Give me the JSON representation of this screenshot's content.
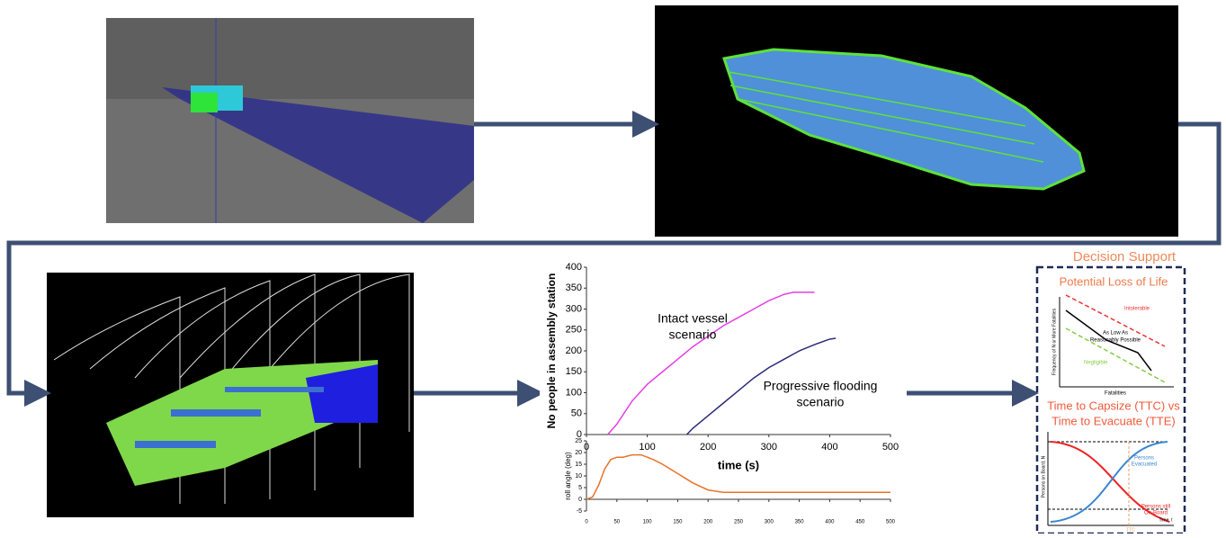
{
  "assembly_chart": {
    "type": "line",
    "ylabel": "No people in assembly station",
    "xlabel": "time (s)",
    "xlim": [
      0,
      500
    ],
    "ylim": [
      0,
      400
    ],
    "xticks": [
      0,
      100,
      200,
      300,
      400,
      500
    ],
    "yticks": [
      0,
      50,
      100,
      150,
      200,
      250,
      300,
      350,
      400
    ],
    "series": [
      {
        "color": "#e43fe4",
        "x": [
          35,
          50,
          75,
          100,
          125,
          150,
          175,
          200,
          225,
          250,
          275,
          300,
          325,
          340,
          375
        ],
        "values": [
          0,
          25,
          80,
          120,
          150,
          180,
          210,
          235,
          260,
          280,
          300,
          320,
          335,
          340,
          340
        ]
      },
      {
        "color": "#2b2b78",
        "x": [
          165,
          175,
          200,
          225,
          250,
          275,
          300,
          325,
          350,
          375,
          400,
          410
        ],
        "values": [
          0,
          15,
          45,
          75,
          105,
          135,
          160,
          180,
          200,
          215,
          228,
          230
        ]
      }
    ],
    "annotations": [
      {
        "lines": [
          "Intact vessel",
          "scenario"
        ]
      },
      {
        "lines": [
          "Progressive flooding",
          "scenario"
        ]
      }
    ]
  },
  "roll_chart": {
    "type": "line",
    "ylabel": "roll angle (deg)",
    "xlim": [
      0,
      500
    ],
    "ylim": [
      -5,
      25
    ],
    "xticks": [
      0,
      50,
      100,
      150,
      200,
      250,
      300,
      350,
      400,
      450,
      500
    ],
    "yticks": [
      -5,
      0,
      5,
      10,
      15,
      20,
      25
    ],
    "series": [
      {
        "color": "#e8732a",
        "x": [
          0,
          10,
          20,
          30,
          40,
          50,
          60,
          75,
          90,
          100,
          110,
          125,
          150,
          175,
          200,
          225,
          250,
          300,
          350,
          400,
          450,
          500
        ],
        "values": [
          0,
          1,
          6,
          13,
          17,
          18,
          18,
          19,
          19,
          18,
          17,
          15,
          11,
          7,
          4,
          3,
          3,
          3,
          3,
          3,
          3,
          3
        ]
      }
    ]
  },
  "decision_support": {
    "title": "Decision Support",
    "risk": {
      "title": "Potential Loss of Life",
      "intolerable": "Intolerable",
      "alarp": [
        "As Low As",
        "Reasonably Possible"
      ],
      "negligible": "Negligible",
      "ylabel": "Frequency of N or More Fatalities",
      "xlabel": "Fatalities"
    },
    "ttc": {
      "title": [
        "Time to Capsize (TTC) vs",
        "Time to Evacuate (TTE)"
      ],
      "evacuated": [
        "Persons",
        "Evacuated"
      ],
      "onboard": [
        "Persons still",
        "On-Board"
      ],
      "ylabel": "Persons on Board, N",
      "xlabel": "Time, t",
      "ttc": "TTC"
    }
  }
}
